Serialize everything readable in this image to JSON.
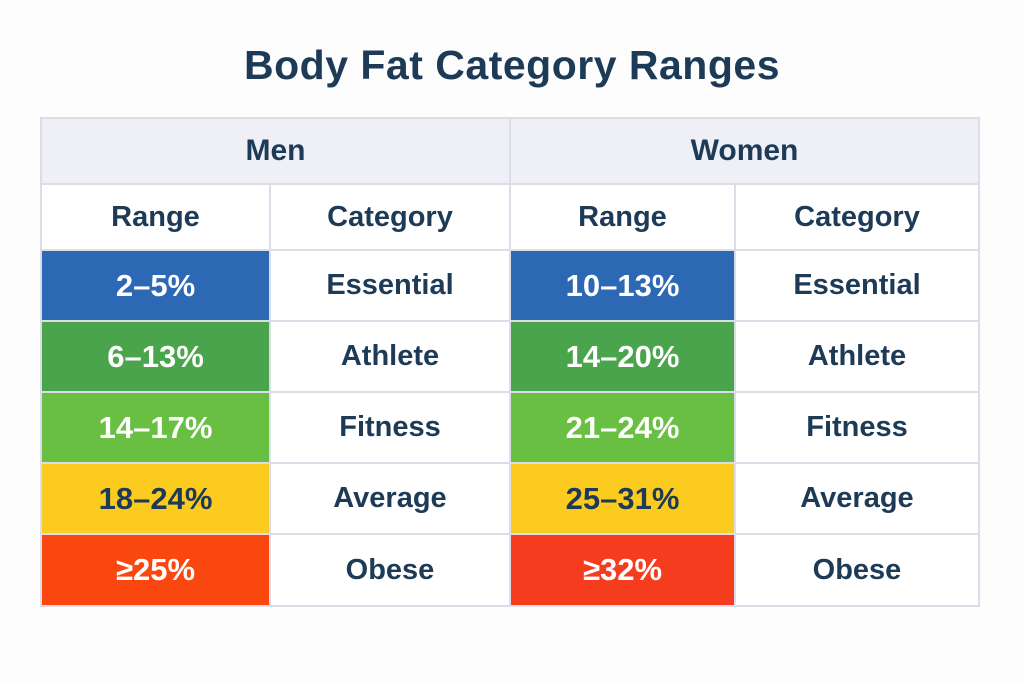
{
  "page": {
    "title": "Body Fat Category Ranges",
    "background": "#fdfdfd"
  },
  "colors": {
    "title_text": "#1d3a56",
    "group_header_bg": "#eef0f5",
    "grid_border": "#dcdde9",
    "cell_bg": "#ffffff"
  },
  "chart_data": {
    "type": "table",
    "title": "Body Fat Category Ranges",
    "groups": [
      {
        "label": "Men",
        "columns": [
          "Range",
          "Category"
        ]
      },
      {
        "label": "Women",
        "columns": [
          "Range",
          "Category"
        ]
      }
    ],
    "rows": [
      {
        "category": "Essential",
        "men_range": "2–5%",
        "women_range": "10–13%",
        "men_bg": "#2d68b4",
        "women_bg": "#2d68b4",
        "range_fg": "#ffffff"
      },
      {
        "category": "Athlete",
        "men_range": "6–13%",
        "women_range": "14–20%",
        "men_bg": "#4aa44b",
        "women_bg": "#4aa44b",
        "range_fg": "#ffffff"
      },
      {
        "category": "Fitness",
        "men_range": "14–17%",
        "women_range": "21–24%",
        "men_bg": "#69bf41",
        "women_bg": "#69bf41",
        "range_fg": "#ffffff"
      },
      {
        "category": "Average",
        "men_range": "18–24%",
        "women_range": "25–31%",
        "men_bg": "#fbcc1f",
        "women_bg": "#fbcc1f",
        "range_fg": "#1d3a56"
      },
      {
        "category": "Obese",
        "men_range": "≥25%",
        "women_range": "≥32%",
        "men_bg": "#fa460f",
        "women_bg": "#f53c1e",
        "range_fg": "#ffffff"
      }
    ]
  }
}
